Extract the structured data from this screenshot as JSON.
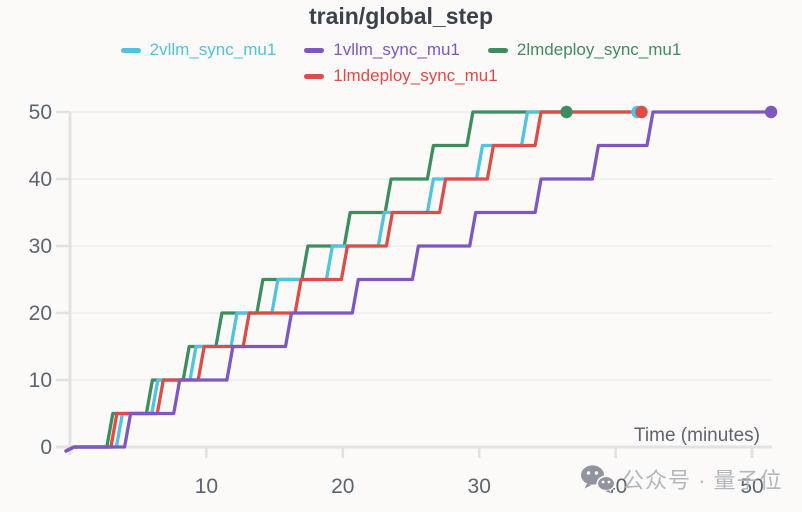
{
  "chart_data": {
    "type": "line",
    "subtype": "step",
    "title": "train/global_step",
    "xlabel": "Time (minutes)",
    "ylabel": "",
    "x_ticks": [
      10,
      20,
      30,
      40,
      50
    ],
    "y_ticks": [
      0,
      10,
      20,
      30,
      40,
      50
    ],
    "xlim": [
      0,
      51.5
    ],
    "ylim": [
      0,
      50
    ],
    "grid": "horizontal",
    "legend_position": "top",
    "legend_rows": [
      [
        0,
        1,
        2
      ],
      [
        3
      ]
    ],
    "step_increment": 5,
    "series": [
      {
        "name": "2vllm_sync_mu1",
        "color": "#4fc3e1",
        "start_value": 0,
        "final_value": 50,
        "step_times": [
          3.4,
          6.0,
          8.8,
          11.8,
          14.8,
          18.8,
          22.6,
          26.2,
          29.8,
          33.1
        ],
        "end_time": 41.6
      },
      {
        "name": "1vllm_sync_mu1",
        "color": "#7e57c2",
        "start_value": 0,
        "final_value": 50,
        "step_times": [
          4.0,
          7.6,
          11.5,
          15.8,
          20.7,
          25.1,
          29.3,
          34.1,
          38.3,
          42.3
        ],
        "end_time": 51.4
      },
      {
        "name": "2lmdeploy_sync_mu1",
        "color": "#3d8e5e",
        "start_value": 0,
        "final_value": 50,
        "step_times": [
          2.7,
          5.6,
          8.3,
          10.7,
          13.7,
          17.0,
          20.1,
          23.1,
          26.2,
          29.1
        ],
        "end_time": 36.4
      },
      {
        "name": "1lmdeploy_sync_mu1",
        "color": "#e04b46",
        "start_value": 0,
        "final_value": 50,
        "step_times": [
          3.0,
          6.4,
          9.4,
          12.7,
          16.5,
          19.9,
          23.2,
          27.1,
          30.6,
          34.1
        ],
        "end_time": 41.9
      }
    ]
  },
  "watermark": {
    "text": "公众号 · 量子位",
    "icon": "wechat-icon"
  },
  "colors": {
    "background": "#fbfaf8",
    "axis": "#e2e2e2",
    "grid": "#ededed",
    "tick_label": "#5d6470",
    "axis_label": "#5d6470",
    "title": "#3a414c",
    "watermark_icon": "#8f949d",
    "watermark_text": "#b3b6bd"
  }
}
